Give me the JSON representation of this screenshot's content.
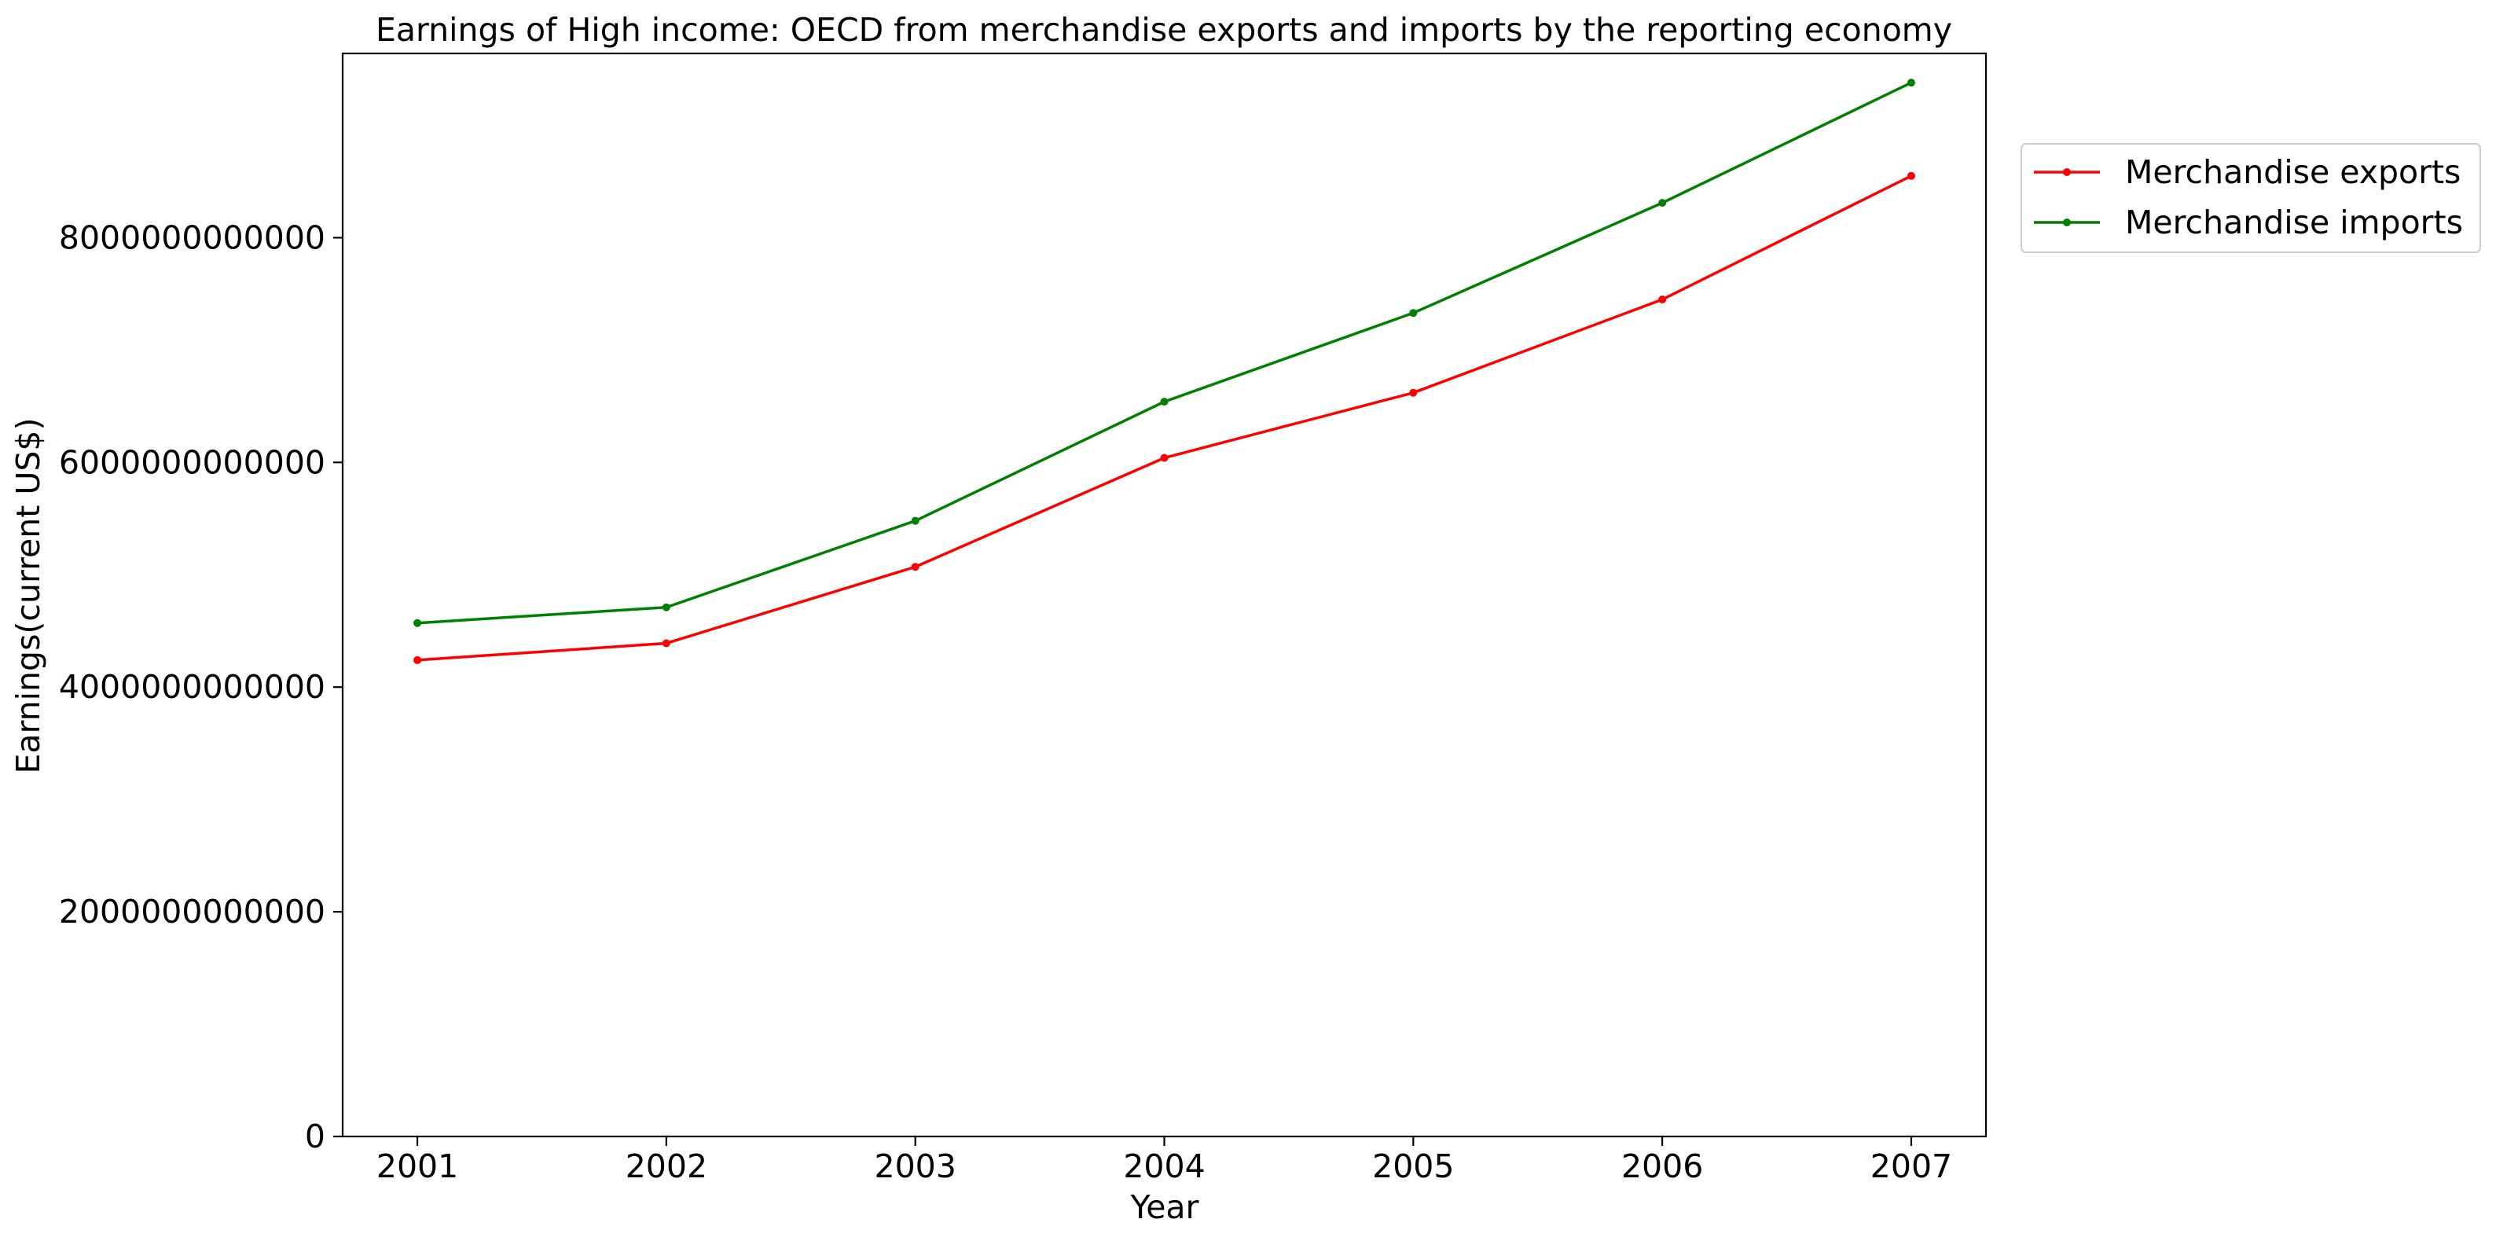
{
  "chart_data": {
    "type": "line",
    "title": "Earnings of High income: OECD from merchandise exports and imports by the reporting economy",
    "xlabel": "Year",
    "ylabel": "Earnings(current US$)",
    "x": [
      2001,
      2002,
      2003,
      2004,
      2005,
      2006,
      2007
    ],
    "x_tick_labels": [
      "2001",
      "2002",
      "2003",
      "2004",
      "2005",
      "2006",
      "2007"
    ],
    "y_ticks": [
      0,
      2000000000000,
      4000000000000,
      6000000000000,
      8000000000000
    ],
    "y_tick_labels": [
      "0",
      "2000000000000",
      "4000000000000",
      "6000000000000",
      "8000000000000"
    ],
    "ylim": [
      0,
      9640000000000
    ],
    "xlim": [
      2000.7,
      2007.3
    ],
    "grid": false,
    "legend_position": "outside top-right",
    "series": [
      {
        "name": "Merchandise exports",
        "color": "#ff0000",
        "marker": "dot",
        "values": [
          4240000000000,
          4390000000000,
          5070000000000,
          6040000000000,
          6620000000000,
          7450000000000,
          8550000000000
        ]
      },
      {
        "name": "Merchandise imports",
        "color": "#008000",
        "marker": "dot",
        "values": [
          4570000000000,
          4710000000000,
          5480000000000,
          6540000000000,
          7330000000000,
          8310000000000,
          9380000000000
        ]
      }
    ]
  }
}
